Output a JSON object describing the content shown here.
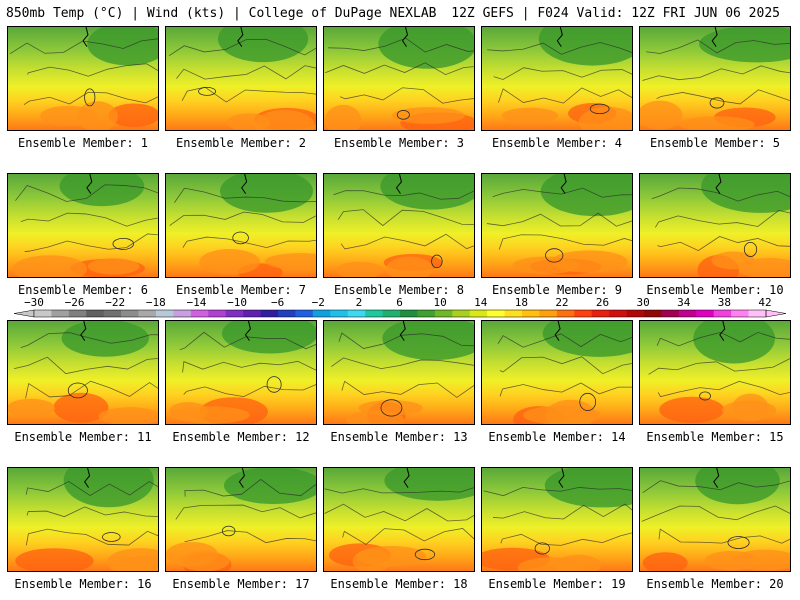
{
  "header": {
    "left": "850mb Temp (°C) | Wind (kts) | College of DuPage NEXLAB",
    "right": "12Z GEFS | F024 Valid: 12Z FRI JUN 06 2025"
  },
  "members": [
    {
      "label": "Ensemble Member: 1"
    },
    {
      "label": "Ensemble Member: 2"
    },
    {
      "label": "Ensemble Member: 3"
    },
    {
      "label": "Ensemble Member: 4"
    },
    {
      "label": "Ensemble Member: 5"
    },
    {
      "label": "Ensemble Member: 6"
    },
    {
      "label": "Ensemble Member: 7"
    },
    {
      "label": "Ensemble Member: 8"
    },
    {
      "label": "Ensemble Member: 9"
    },
    {
      "label": "Ensemble Member: 10"
    },
    {
      "label": "Ensemble Member: 11"
    },
    {
      "label": "Ensemble Member: 12"
    },
    {
      "label": "Ensemble Member: 13"
    },
    {
      "label": "Ensemble Member: 14"
    },
    {
      "label": "Ensemble Member: 15"
    },
    {
      "label": "Ensemble Member: 16"
    },
    {
      "label": "Ensemble Member: 17"
    },
    {
      "label": "Ensemble Member: 18"
    },
    {
      "label": "Ensemble Member: 19"
    },
    {
      "label": "Ensemble Member: 20"
    }
  ],
  "colorbar": {
    "labels": [
      "-30",
      "-26",
      "-22",
      "-18",
      "-14",
      "-10",
      "-6",
      "-2",
      "2",
      "6",
      "10",
      "14",
      "18",
      "22",
      "26",
      "30",
      "34",
      "38",
      "42"
    ],
    "colors": [
      "#c8c8c8",
      "#a0a0a0",
      "#808080",
      "#606060",
      "#707070",
      "#8c8c8c",
      "#a8a8a8",
      "#b8c8d8",
      "#c8a0e0",
      "#d060e0",
      "#b040d0",
      "#8030c0",
      "#6020b0",
      "#3020a0",
      "#2040c0",
      "#2060e0",
      "#10a0e0",
      "#20c0e8",
      "#40d8f0",
      "#20c8a0",
      "#20b070",
      "#209040",
      "#40a030",
      "#70b828",
      "#a8d020",
      "#d8e818",
      "#ffff30",
      "#ffe020",
      "#ffc010",
      "#ffa010",
      "#ff7010",
      "#ff4010",
      "#e82010",
      "#d01010",
      "#b00808",
      "#900808",
      "#a00050",
      "#c00090",
      "#e000c0",
      "#f040e0",
      "#ff80f0",
      "#ffc0f8"
    ]
  }
}
